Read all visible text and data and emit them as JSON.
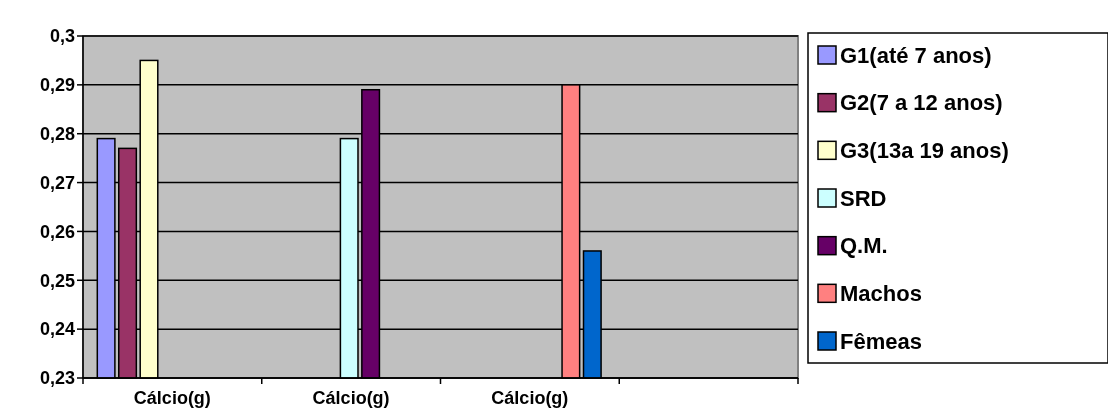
{
  "chart_data": {
    "type": "bar",
    "categories": [
      "Cálcio(g)",
      "Cálcio(g)",
      "Cálcio(g)",
      null
    ],
    "series": [
      {
        "name": "G1(até 7 anos)",
        "color": "#9999ff",
        "values": [
          0.279,
          null,
          null,
          null
        ]
      },
      {
        "name": "G2(7 a 12 anos)",
        "color": "#993366",
        "values": [
          0.277,
          null,
          null,
          null
        ]
      },
      {
        "name": "G3(13a 19 anos)",
        "color": "#ffffcc",
        "values": [
          0.295,
          null,
          null,
          null
        ]
      },
      {
        "name": "SRD",
        "color": "#ccffff",
        "values": [
          null,
          0.279,
          null,
          null
        ]
      },
      {
        "name": "Q.M.",
        "color": "#660066",
        "values": [
          null,
          0.289,
          null,
          null
        ]
      },
      {
        "name": "Machos",
        "color": "#ff8080",
        "values": [
          null,
          null,
          0.29,
          null
        ]
      },
      {
        "name": "Fêmeas",
        "color": "#0066cc",
        "values": [
          null,
          null,
          0.256,
          null
        ]
      }
    ],
    "ylim": [
      0.23,
      0.3
    ],
    "yticks": [
      {
        "value": 0.23,
        "label": "0,23"
      },
      {
        "value": 0.24,
        "label": "0,24"
      },
      {
        "value": 0.25,
        "label": "0,25"
      },
      {
        "value": 0.26,
        "label": "0,26"
      },
      {
        "value": 0.27,
        "label": "0,27"
      },
      {
        "value": 0.28,
        "label": "0,28"
      },
      {
        "value": 0.29,
        "label": "0,29"
      },
      {
        "value": 0.3,
        "label": "0,3"
      }
    ],
    "grid": "y",
    "legend": "right"
  }
}
